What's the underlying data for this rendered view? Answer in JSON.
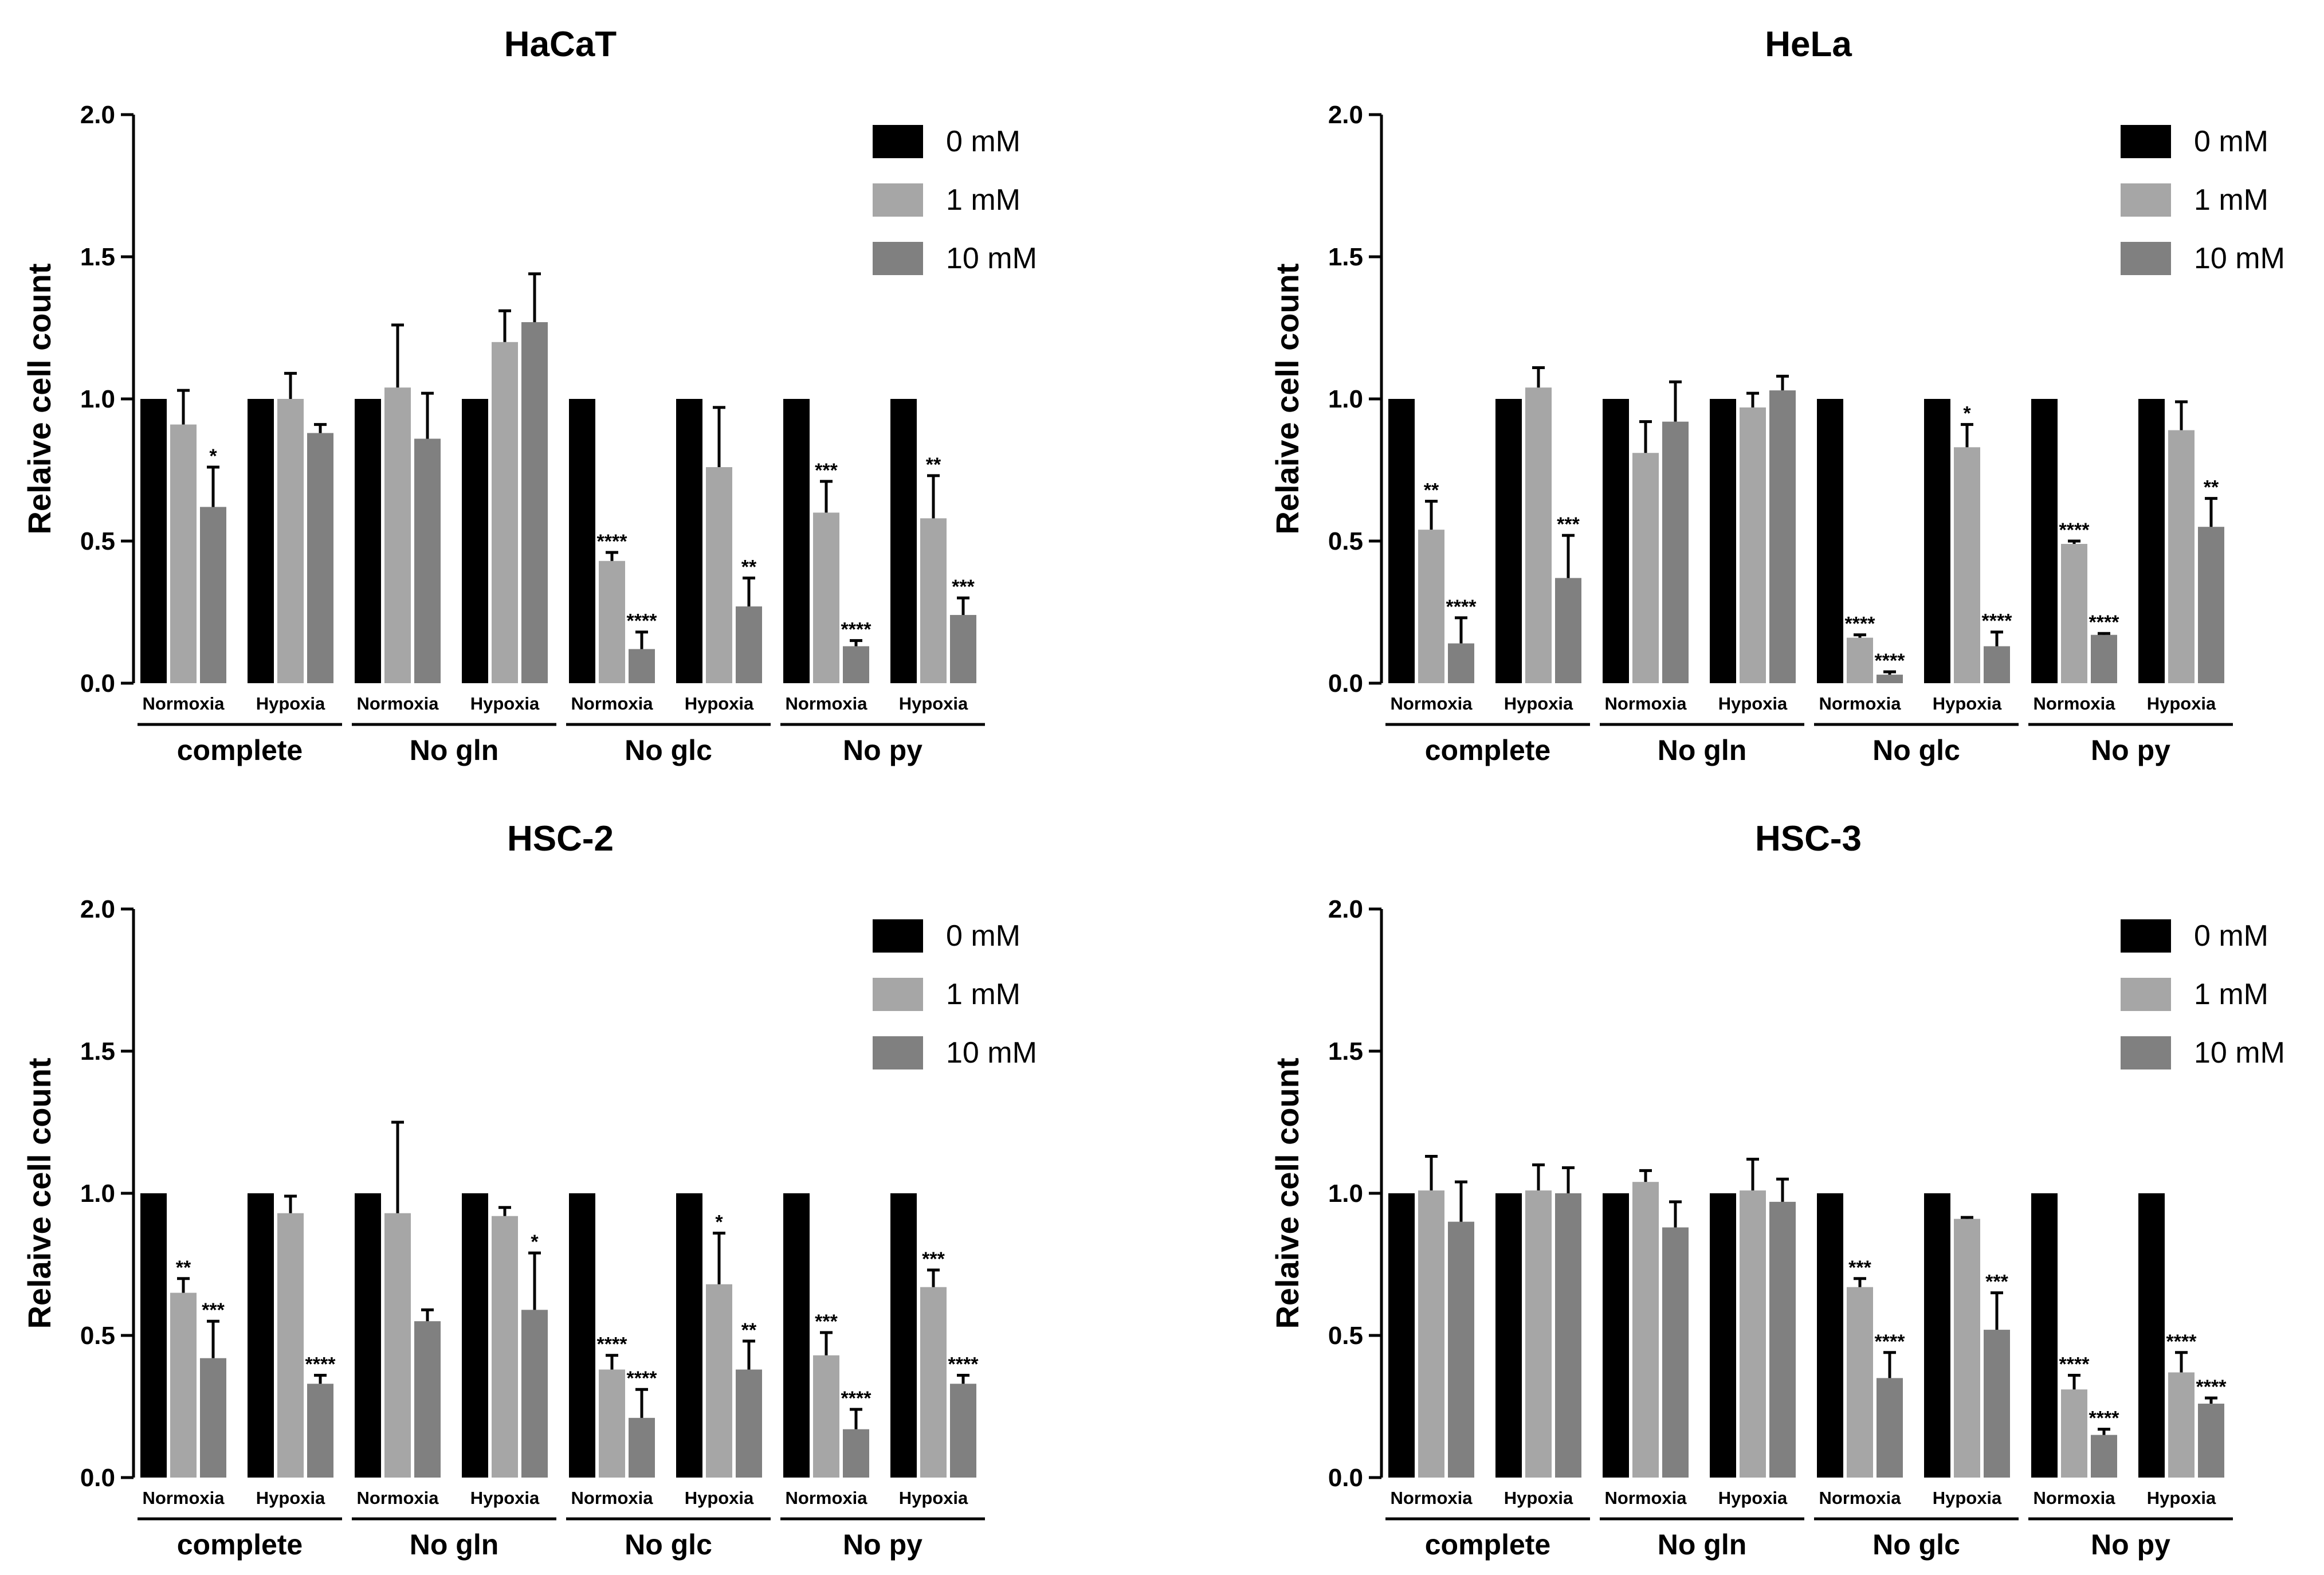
{
  "chart_data": [
    {
      "type": "bar",
      "title": "HaCaT",
      "ylabel": "Relaive cell count",
      "ylim": [
        0,
        2.0
      ],
      "yticks": [
        "0.0",
        "0.5",
        "1.0",
        "1.5",
        "2.0"
      ],
      "groups": [
        "complete",
        "No gln",
        "No glc",
        "No py"
      ],
      "conditions": [
        "Normoxia",
        "Hypoxia",
        "Normoxia",
        "Hypoxia",
        "Normoxia",
        "Hypoxia",
        "Normoxia",
        "Hypoxia"
      ],
      "legend_position": "top-right",
      "series": [
        {
          "name": "0 mM",
          "color": "#000000",
          "values": [
            1.0,
            1.0,
            1.0,
            1.0,
            1.0,
            1.0,
            1.0,
            1.0
          ],
          "errors": [
            0,
            0,
            0,
            0,
            0,
            0,
            0,
            0
          ],
          "annotations": [
            "",
            "",
            "",
            "",
            "",
            "",
            "",
            ""
          ]
        },
        {
          "name": "1 mM",
          "color": "#a6a6a6",
          "values": [
            0.91,
            1.0,
            1.04,
            1.2,
            0.43,
            0.76,
            0.6,
            0.58
          ],
          "errors": [
            0.12,
            0.09,
            0.22,
            0.11,
            0.03,
            0.21,
            0.11,
            0.15
          ],
          "annotations": [
            "",
            "",
            "",
            "",
            "****",
            "",
            "***",
            "**"
          ]
        },
        {
          "name": "10 mM",
          "color": "#808080",
          "values": [
            0.62,
            0.88,
            0.86,
            1.27,
            0.12,
            0.27,
            0.13,
            0.24
          ],
          "errors": [
            0.14,
            0.03,
            0.16,
            0.17,
            0.06,
            0.1,
            0.02,
            0.06
          ],
          "annotations": [
            "*",
            "",
            "",
            "",
            "****",
            "**",
            "****",
            "***"
          ]
        }
      ]
    },
    {
      "type": "bar",
      "title": "HeLa",
      "ylabel": "Relaive cell count",
      "ylim": [
        0,
        2.0
      ],
      "yticks": [
        "0.0",
        "0.5",
        "1.0",
        "1.5",
        "2.0"
      ],
      "groups": [
        "complete",
        "No gln",
        "No glc",
        "No py"
      ],
      "conditions": [
        "Normoxia",
        "Hypoxia",
        "Normoxia",
        "Hypoxia",
        "Normoxia",
        "Hypoxia",
        "Normoxia",
        "Hypoxia"
      ],
      "legend_position": "top-right",
      "series": [
        {
          "name": "0 mM",
          "color": "#000000",
          "values": [
            1.0,
            1.0,
            1.0,
            1.0,
            1.0,
            1.0,
            1.0,
            1.0
          ],
          "errors": [
            0,
            0,
            0,
            0,
            0,
            0,
            0,
            0
          ],
          "annotations": [
            "",
            "",
            "",
            "",
            "",
            "",
            "",
            ""
          ]
        },
        {
          "name": "1 mM",
          "color": "#a6a6a6",
          "values": [
            0.54,
            1.04,
            0.81,
            0.97,
            0.16,
            0.83,
            0.49,
            0.89
          ],
          "errors": [
            0.1,
            0.07,
            0.11,
            0.05,
            0.01,
            0.08,
            0.01,
            0.1
          ],
          "annotations": [
            "**",
            "",
            "",
            "",
            "****",
            "*",
            "****",
            ""
          ]
        },
        {
          "name": "10 mM",
          "color": "#808080",
          "values": [
            0.14,
            0.37,
            0.92,
            1.03,
            0.03,
            0.13,
            0.17,
            0.55
          ],
          "errors": [
            0.09,
            0.15,
            0.14,
            0.05,
            0.01,
            0.05,
            0.005,
            0.1
          ],
          "annotations": [
            "****",
            "***",
            "",
            "",
            "****",
            "****",
            "****",
            "**"
          ]
        }
      ]
    },
    {
      "type": "bar",
      "title": "HSC-2",
      "ylabel": "Relaive cell count",
      "ylim": [
        0,
        2.0
      ],
      "yticks": [
        "0.0",
        "0.5",
        "1.0",
        "1.5",
        "2.0"
      ],
      "groups": [
        "complete",
        "No gln",
        "No glc",
        "No py"
      ],
      "conditions": [
        "Normoxia",
        "Hypoxia",
        "Normoxia",
        "Hypoxia",
        "Normoxia",
        "Hypoxia",
        "Normoxia",
        "Hypoxia"
      ],
      "legend_position": "top-right",
      "series": [
        {
          "name": "0 mM",
          "color": "#000000",
          "values": [
            1.0,
            1.0,
            1.0,
            1.0,
            1.0,
            1.0,
            1.0,
            1.0
          ],
          "errors": [
            0,
            0,
            0,
            0,
            0,
            0,
            0,
            0
          ],
          "annotations": [
            "",
            "",
            "",
            "",
            "",
            "",
            "",
            ""
          ]
        },
        {
          "name": "1 mM",
          "color": "#a6a6a6",
          "values": [
            0.65,
            0.93,
            0.93,
            0.92,
            0.38,
            0.68,
            0.43,
            0.67
          ],
          "errors": [
            0.05,
            0.06,
            0.32,
            0.03,
            0.05,
            0.18,
            0.08,
            0.06
          ],
          "annotations": [
            "**",
            "",
            "",
            "",
            "****",
            "*",
            "***",
            "***"
          ]
        },
        {
          "name": "10 mM",
          "color": "#808080",
          "values": [
            0.42,
            0.33,
            0.55,
            0.59,
            0.21,
            0.38,
            0.17,
            0.33
          ],
          "errors": [
            0.13,
            0.03,
            0.04,
            0.2,
            0.1,
            0.1,
            0.07,
            0.03
          ],
          "annotations": [
            "***",
            "****",
            "",
            "*",
            "****",
            "**",
            "****",
            "****"
          ]
        }
      ]
    },
    {
      "type": "bar",
      "title": "HSC-3",
      "ylabel": "Relaive cell count",
      "ylim": [
        0,
        2.0
      ],
      "yticks": [
        "0.0",
        "0.5",
        "1.0",
        "1.5",
        "2.0"
      ],
      "groups": [
        "complete",
        "No gln",
        "No glc",
        "No py"
      ],
      "conditions": [
        "Normoxia",
        "Hypoxia",
        "Normoxia",
        "Hypoxia",
        "Normoxia",
        "Hypoxia",
        "Normoxia",
        "Hypoxia"
      ],
      "legend_position": "top-right",
      "series": [
        {
          "name": "0 mM",
          "color": "#000000",
          "values": [
            1.0,
            1.0,
            1.0,
            1.0,
            1.0,
            1.0,
            1.0,
            1.0
          ],
          "errors": [
            0,
            0,
            0,
            0,
            0,
            0,
            0,
            0
          ],
          "annotations": [
            "",
            "",
            "",
            "",
            "",
            "",
            "",
            ""
          ]
        },
        {
          "name": "1 mM",
          "color": "#a6a6a6",
          "values": [
            1.01,
            1.01,
            1.04,
            1.01,
            0.67,
            0.91,
            0.31,
            0.37
          ],
          "errors": [
            0.12,
            0.09,
            0.04,
            0.11,
            0.03,
            0.005,
            0.05,
            0.07
          ],
          "annotations": [
            "",
            "",
            "",
            "",
            "***",
            "",
            "****",
            "****"
          ]
        },
        {
          "name": "10 mM",
          "color": "#808080",
          "values": [
            0.9,
            1.0,
            0.88,
            0.97,
            0.35,
            0.52,
            0.15,
            0.26
          ],
          "errors": [
            0.14,
            0.09,
            0.09,
            0.08,
            0.09,
            0.13,
            0.02,
            0.02
          ],
          "annotations": [
            "",
            "",
            "",
            "",
            "****",
            "***",
            "****",
            "****"
          ]
        }
      ]
    }
  ]
}
